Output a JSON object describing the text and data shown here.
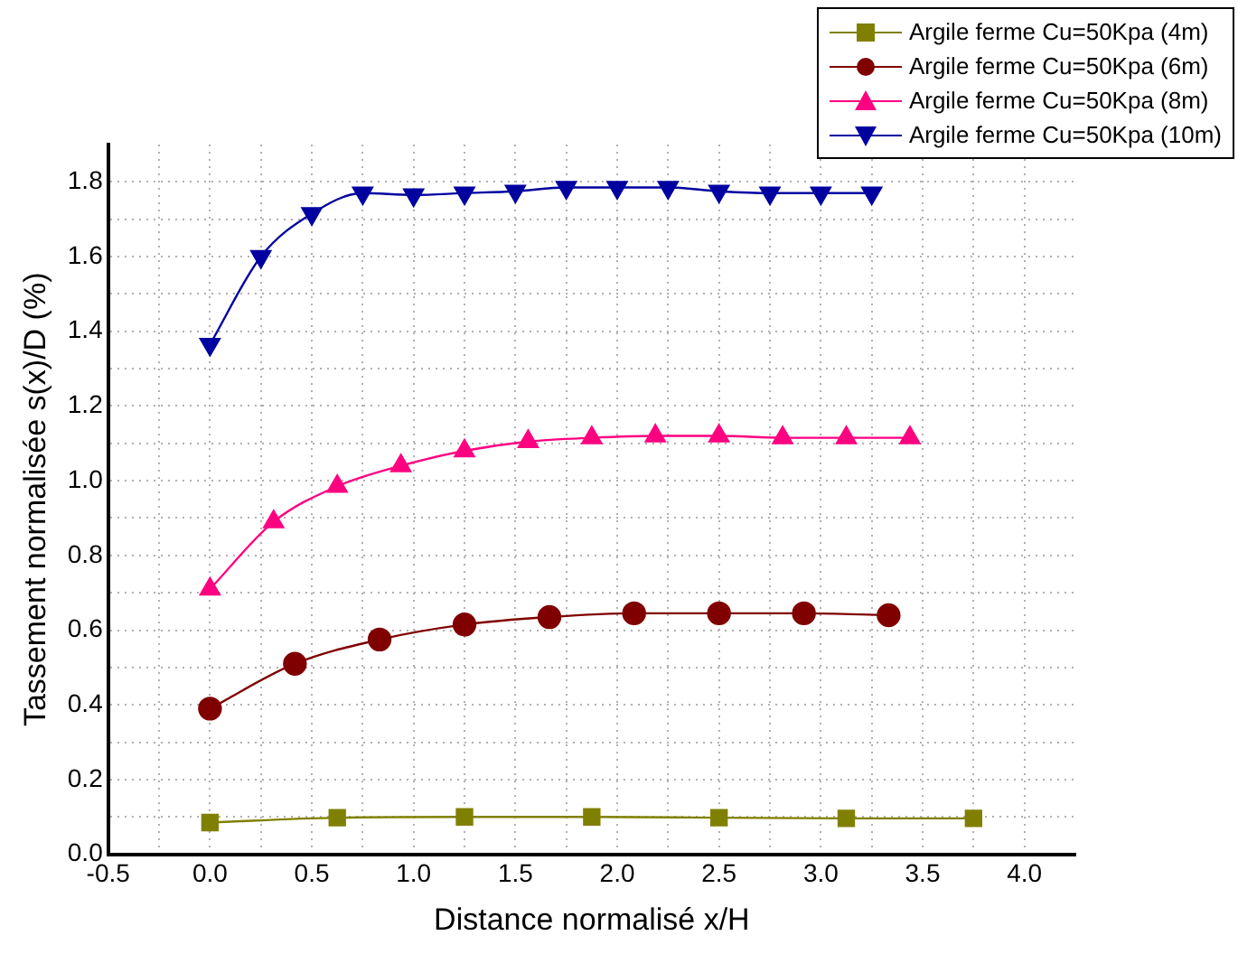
{
  "chart_data": {
    "type": "line",
    "xlabel": "Distance normalisé x/H",
    "ylabel": "Tassement normalisée s(x)/D (%)",
    "xlim": [
      -0.5,
      4.25
    ],
    "xticks": [
      {
        "value": -0.5,
        "label": "-0.5"
      },
      {
        "value": -0.25,
        "label": null
      },
      {
        "value": 0,
        "label": "0.0"
      },
      {
        "value": 0.25,
        "label": null
      },
      {
        "value": 0.5,
        "label": "0.5"
      },
      {
        "value": 0.75,
        "label": null
      },
      {
        "value": 1,
        "label": "1.0"
      },
      {
        "value": 1.25,
        "label": null
      },
      {
        "value": 1.5,
        "label": "1.5"
      },
      {
        "value": 1.75,
        "label": null
      },
      {
        "value": 2,
        "label": "2.0"
      },
      {
        "value": 2.25,
        "label": null
      },
      {
        "value": 2.5,
        "label": "2.5"
      },
      {
        "value": 2.75,
        "label": null
      },
      {
        "value": 3,
        "label": "3.0"
      },
      {
        "value": 3.25,
        "label": null
      },
      {
        "value": 3.5,
        "label": "3.5"
      },
      {
        "value": 3.75,
        "label": null
      },
      {
        "value": 4,
        "label": "4.0"
      }
    ],
    "ylim": [
      0,
      1.9
    ],
    "yticks": [
      {
        "value": 0,
        "label": "0.0"
      },
      {
        "value": 0.1,
        "label": null
      },
      {
        "value": 0.2,
        "label": "0.2"
      },
      {
        "value": 0.3,
        "label": null
      },
      {
        "value": 0.4,
        "label": "0.4"
      },
      {
        "value": 0.5,
        "label": null
      },
      {
        "value": 0.6,
        "label": "0.6"
      },
      {
        "value": 0.7,
        "label": null
      },
      {
        "value": 0.8,
        "label": "0.8"
      },
      {
        "value": 0.9,
        "label": null
      },
      {
        "value": 1,
        "label": "1.0"
      },
      {
        "value": 1.1,
        "label": null
      },
      {
        "value": 1.2,
        "label": "1.2"
      },
      {
        "value": 1.3,
        "label": null
      },
      {
        "value": 1.4,
        "label": "1.4"
      },
      {
        "value": 1.5,
        "label": null
      },
      {
        "value": 1.6,
        "label": "1.6"
      },
      {
        "value": 1.7,
        "label": null
      },
      {
        "value": 1.8,
        "label": "1.8"
      }
    ],
    "grid": true,
    "legend": "top right",
    "line_style": "solid",
    "series": [
      {
        "name": "Argile ferme Cu=50Kpa (4m)",
        "color": "#808000",
        "marker": "square",
        "x": [
          0,
          0.625,
          1.25,
          1.875,
          2.5,
          3.125,
          3.75
        ],
        "values": [
          0.085,
          0.098,
          0.1,
          0.1,
          0.098,
          0.096,
          0.096
        ]
      },
      {
        "name": "Argile ferme Cu=50Kpa (6m)",
        "color": "#800000",
        "marker": "circle",
        "x": [
          0,
          0.417,
          0.833,
          1.25,
          1.667,
          2.083,
          2.5,
          2.917,
          3.333
        ],
        "values": [
          0.39,
          0.51,
          0.575,
          0.615,
          0.635,
          0.645,
          0.645,
          0.645,
          0.64
        ]
      },
      {
        "name": "Argile ferme Cu=50Kpa (8m)",
        "color": "#ff0080",
        "marker": "triangle",
        "x": [
          0,
          0.3125,
          0.625,
          0.9375,
          1.25,
          1.5625,
          1.875,
          2.1875,
          2.5,
          2.8125,
          3.125,
          3.4375
        ],
        "values": [
          0.71,
          0.89,
          0.985,
          1.04,
          1.08,
          1.105,
          1.115,
          1.12,
          1.12,
          1.115,
          1.115,
          1.115
        ]
      },
      {
        "name": "Argile ferme Cu=50Kpa (10m)",
        "color": "#0000a0",
        "marker": "triangle-down",
        "x": [
          0,
          0.25,
          0.5,
          0.75,
          1,
          1.25,
          1.5,
          1.75,
          2,
          2.25,
          2.5,
          2.75,
          3,
          3.25
        ],
        "values": [
          1.365,
          1.6,
          1.715,
          1.77,
          1.765,
          1.77,
          1.775,
          1.785,
          1.785,
          1.785,
          1.775,
          1.77,
          1.77,
          1.77
        ]
      }
    ]
  }
}
